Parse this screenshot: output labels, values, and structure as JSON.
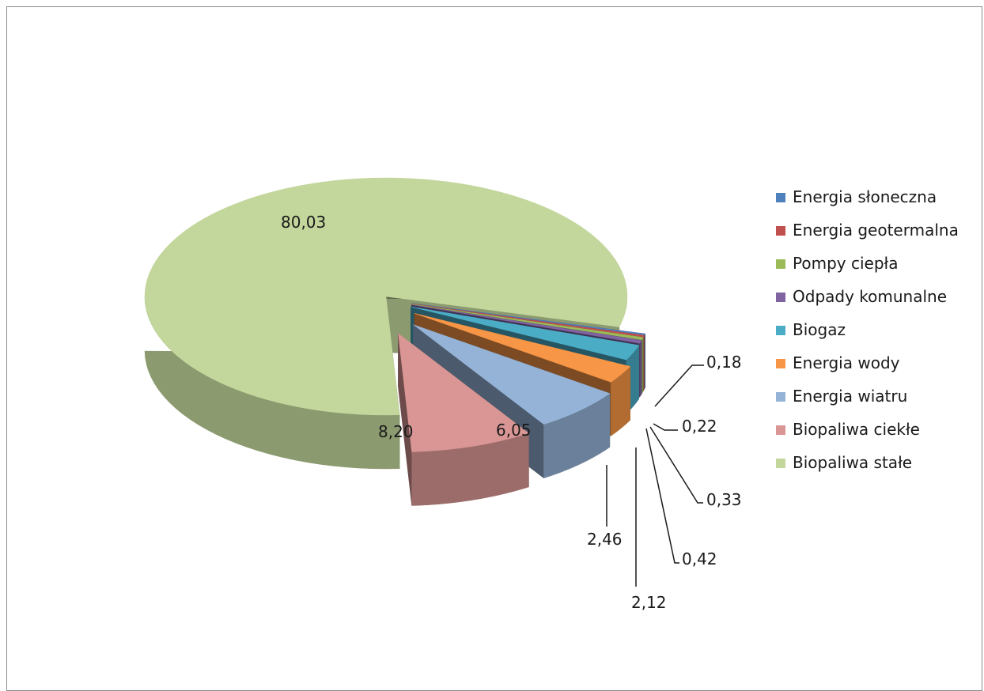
{
  "chart_data": {
    "type": "pie",
    "title": "",
    "categories": [
      "Energia słoneczna",
      "Energia geotermalna",
      "Pompy ciepła",
      "Odpady komunalne",
      "Biogaz",
      "Energia wody",
      "Energia wiatru",
      "Biopaliwa ciekłe",
      "Biopaliwa stałe"
    ],
    "values": [
      0.18,
      0.22,
      0.33,
      0.42,
      2.12,
      2.46,
      6.05,
      8.2,
      80.03
    ],
    "value_labels": [
      "0,18",
      "0,22",
      "0,33",
      "0,42",
      "2,12",
      "2,46",
      "6,05",
      "8,20",
      "80,03"
    ],
    "colors": [
      "#4f81bd",
      "#c0504d",
      "#9bbb59",
      "#8064a2",
      "#4bacc6",
      "#f79646",
      "#95b3d7",
      "#d99694",
      "#c3d69b"
    ],
    "style": "3D exploded pie",
    "legend_position": "right"
  }
}
